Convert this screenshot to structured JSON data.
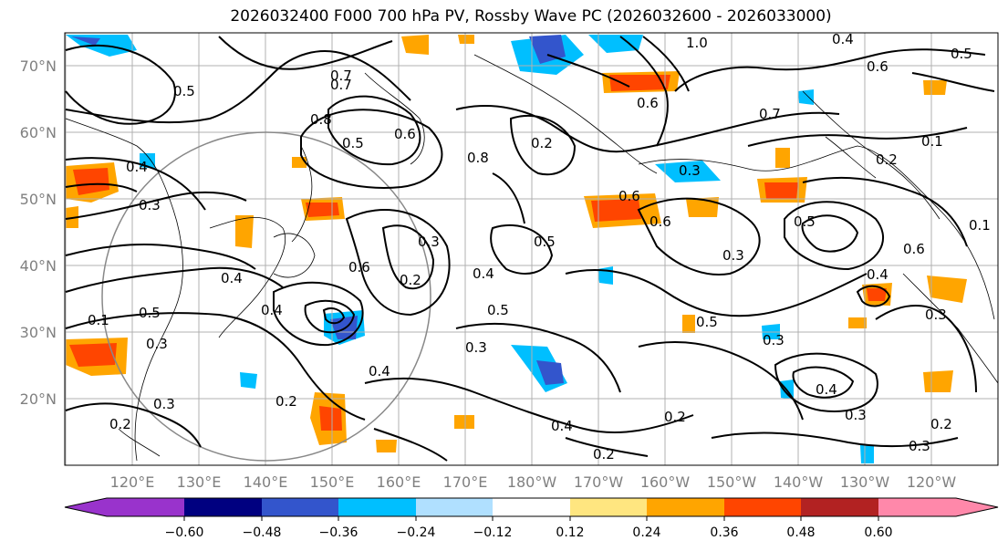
{
  "title": "2026032400 F000 700 hPa PV, Rossby Wave PC (2026032600 - 2026033000)",
  "lat_labels": [
    "70°N",
    "60°N",
    "50°N",
    "40°N",
    "30°N",
    "20°N"
  ],
  "lon_labels": [
    "120°E",
    "130°E",
    "140°E",
    "150°E",
    "160°E",
    "170°E",
    "180°W",
    "170°W",
    "160°W",
    "150°W",
    "140°W",
    "130°W",
    "120°W"
  ],
  "colorbar": {
    "ticks": [
      "−0.60",
      "−0.48",
      "−0.36",
      "−0.24",
      "−0.12",
      "0.12",
      "0.24",
      "0.36",
      "0.48",
      "0.60"
    ],
    "colors": [
      "#9933cc",
      "#000080",
      "#3355cc",
      "#00bfff",
      "#b0e0ff",
      "#ffffff",
      "#ffe680",
      "#ffa500",
      "#ff4500",
      "#b22222",
      "#ff88aa"
    ]
  },
  "contour_labels": [
    "1.0",
    "0.4",
    "0.5",
    "0.6",
    "0.7",
    "0.8",
    "0.5",
    "0.7",
    "0.5",
    "0.8",
    "0.6",
    "0.2",
    "0.3",
    "0.4",
    "0.3",
    "0.6",
    "0.5",
    "0.3",
    "0.4",
    "0.5",
    "0.2",
    "0.3",
    "0.6",
    "0.4",
    "0.5",
    "0.4",
    "0.3",
    "0.2",
    "0.3",
    "0.4",
    "0.2",
    "0.3",
    "0.2",
    "0.2",
    "0.4",
    "0.3",
    "0.2",
    "0.3",
    "0.1",
    "0.4",
    "0.3",
    "0.1",
    "0.7",
    "0.6",
    "0.6",
    "0.2",
    "0.1",
    "0.6",
    "0.5",
    "0.4",
    "0.3",
    "0.5"
  ],
  "colors": {
    "contour": "#000000",
    "grid": "#b0b0b0",
    "coast": "#000000",
    "label_gray": "#808080"
  }
}
